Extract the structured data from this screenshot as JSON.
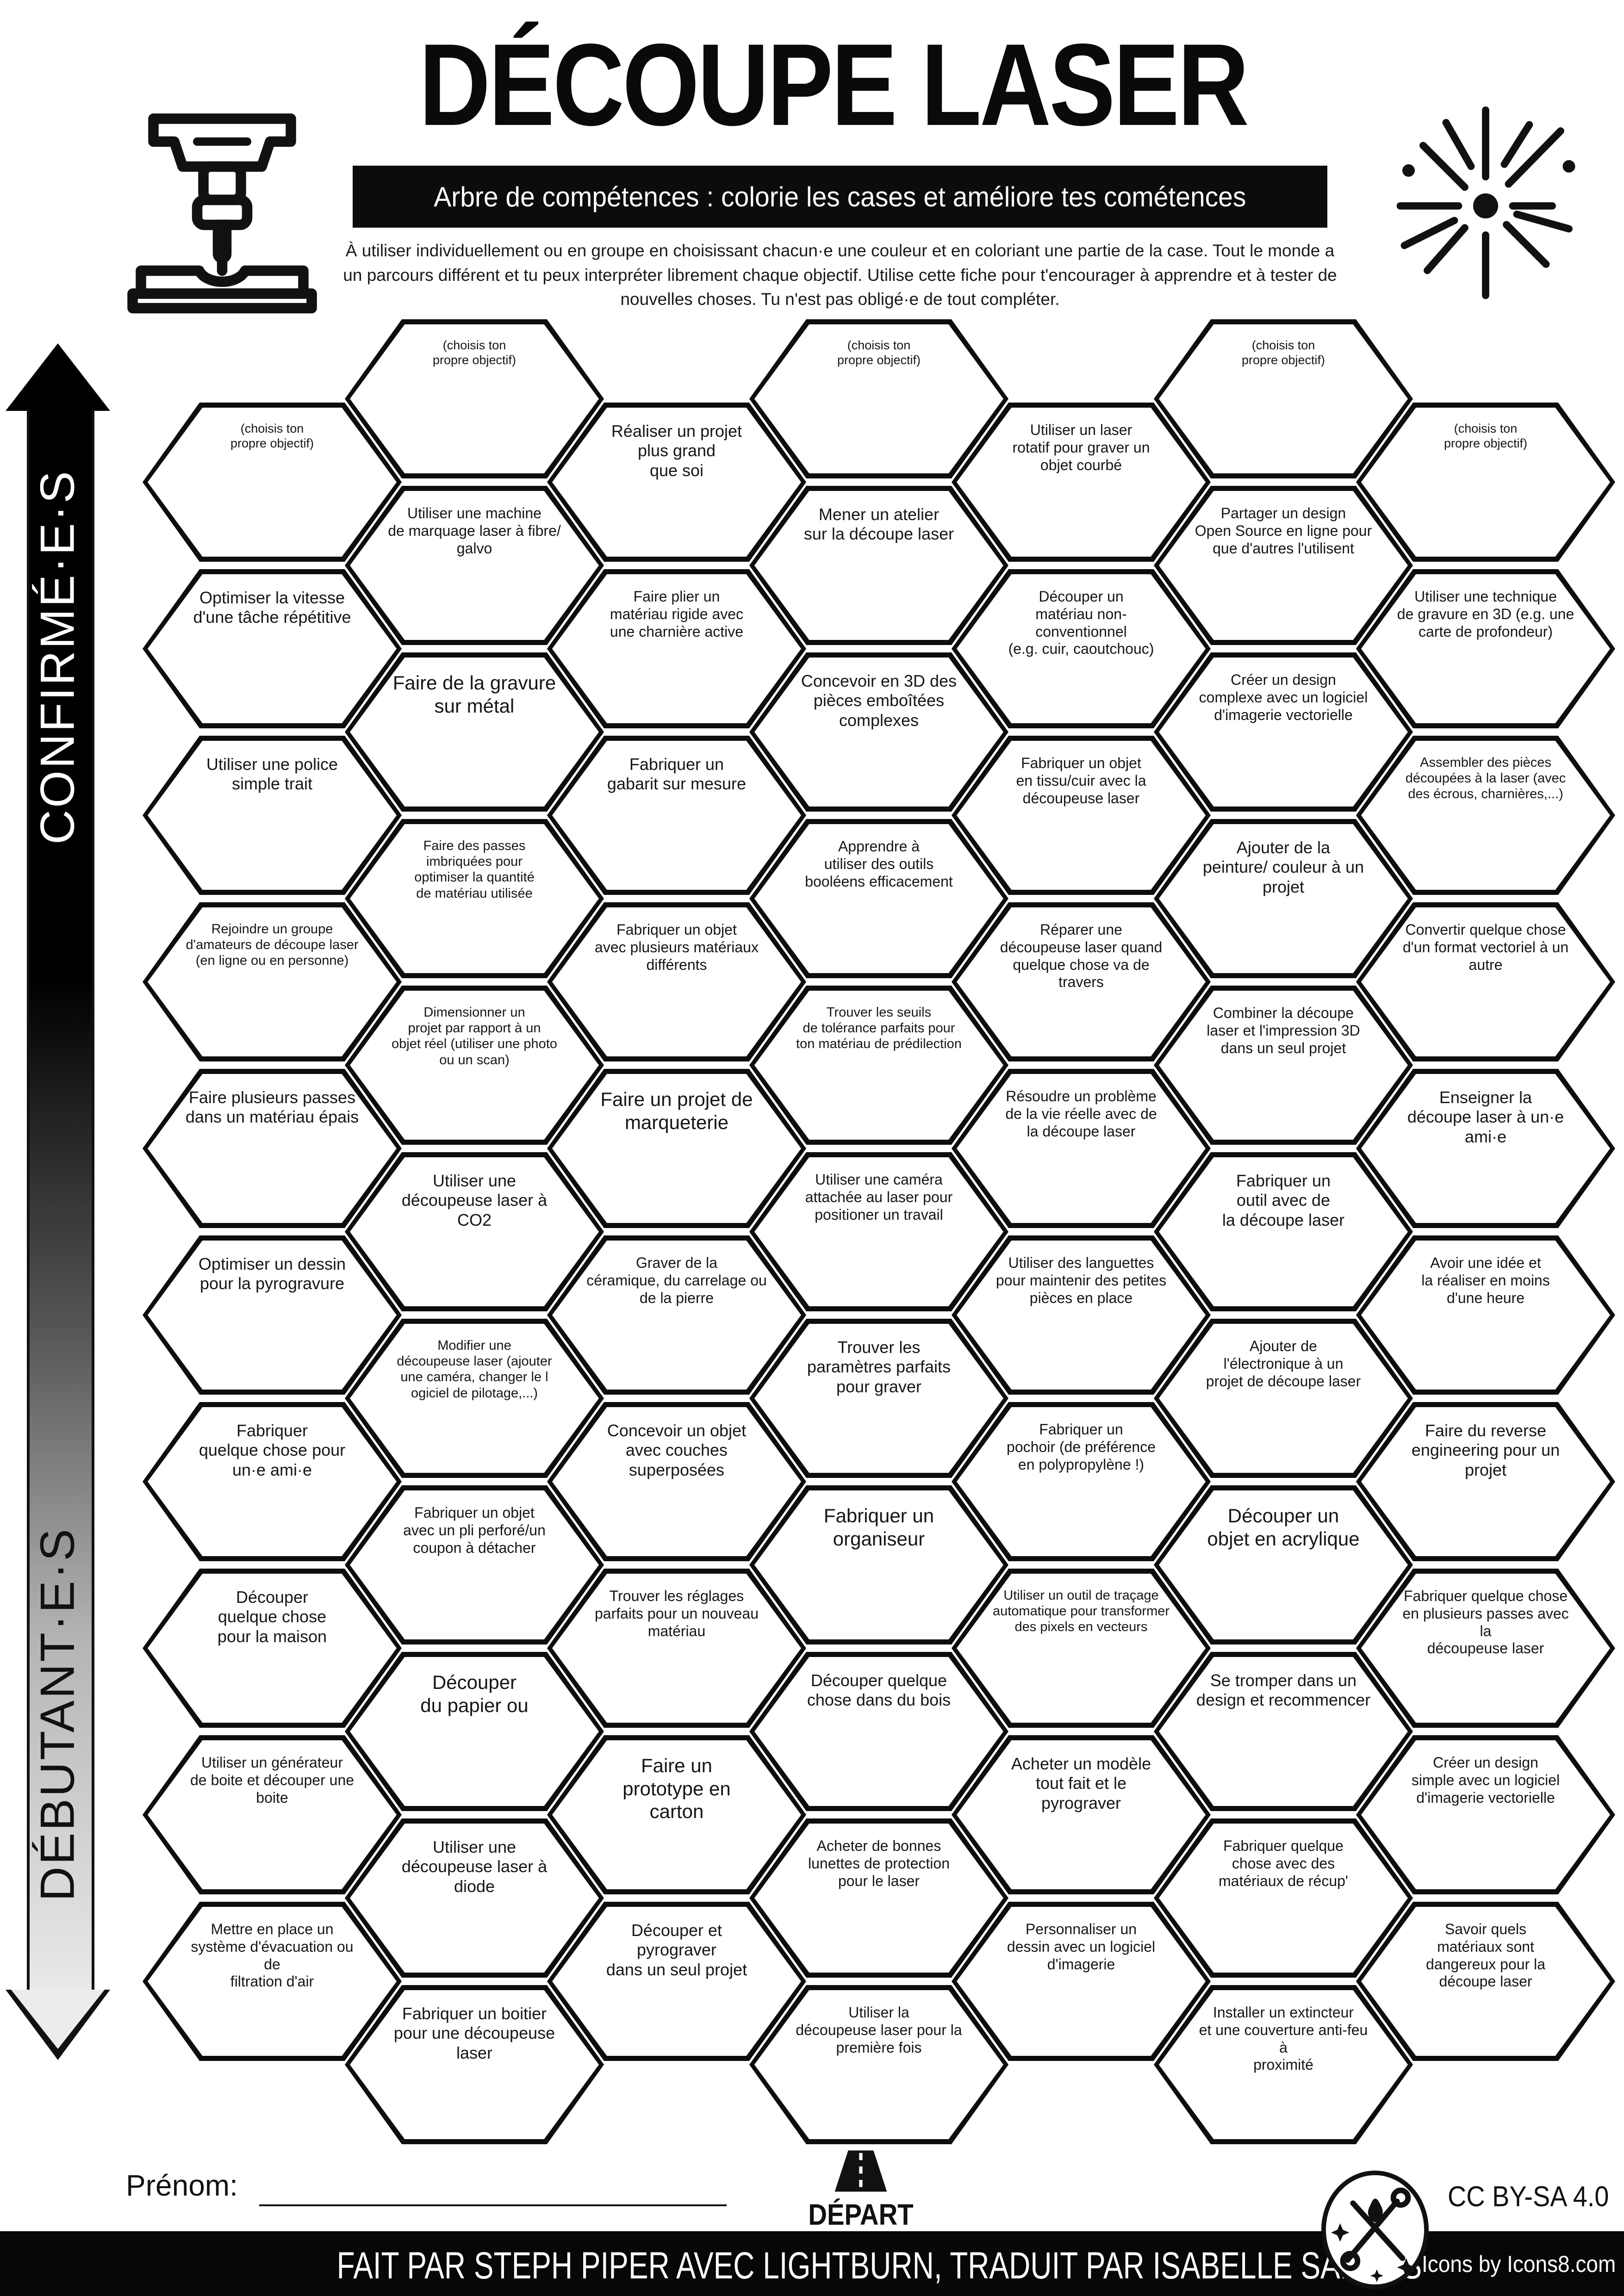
{
  "header": {
    "title": "DÉCOUPE LASER",
    "banner": "Arbre de compétences : colorie les cases et améliore tes cométences",
    "description": "À utiliser individuellement ou en groupe en choisissant chacun·e une couleur et en coloriant une partie de la case. Tout le monde a un parcours différent et tu peux interpréter librement chaque objectif. Utilise cette fiche pour t'encourager à apprendre et à tester de nouvelles choses. Tu n'est pas obligé·e de tout compléter."
  },
  "axis": {
    "top_label": "CONFIRMÉ·E·S",
    "bottom_label": "DÉBUTANT·E·S"
  },
  "colors": {
    "ink": "#111111",
    "paper": "#ffffff"
  },
  "columns": [
    {
      "cells": [
        {
          "text": "(choisis ton\npropre objectif)",
          "icon": ""
        },
        {
          "text": "Optimiser la vitesse\nd'une tâche répétitive",
          "icon": "laser-machine"
        },
        {
          "text": "Utiliser une police\nsimple trait",
          "icon": "font-aa"
        },
        {
          "text": "Rejoindre un groupe\nd'amateurs de découpe laser\n(en ligne ou en personne)",
          "icon": "map-pin"
        },
        {
          "text": "Faire plusieurs passes\ndans un matériau épais",
          "icon": "laser-machine"
        },
        {
          "text": "Optimiser un dessin\npour la pyrogravure",
          "icon": "heart-laser"
        },
        {
          "text": "Fabriquer\nquelque chose pour\nun·e ami·e",
          "icon": "gift-bow"
        },
        {
          "text": "Découper\nquelque chose\npour la maison",
          "icon": "house"
        },
        {
          "text": "Utiliser un générateur\nde boite et découper une\nboite",
          "icon": "finger-joint-box"
        },
        {
          "text": "Mettre en place un\nsystème d'évacuation ou de\nfiltration d'air",
          "icon": "wind"
        }
      ]
    },
    {
      "cells": [
        {
          "text": "(choisis ton\npropre objectif)",
          "icon": ""
        },
        {
          "text": "Utiliser une machine\nde marquage laser à fibre/\ngalvo",
          "icon": "laser-burst"
        },
        {
          "text": "Faire de la gravure\nsur métal",
          "icon": "heart-laser"
        },
        {
          "text": "Faire des passes\nimbriquées pour\noptimiser la quantité\nde matériau utilisée",
          "icon": "nested-bone"
        },
        {
          "text": "Dimensionner un\nprojet par rapport à un\nobjet réel (utiliser une photo\nou un scan)",
          "icon": "gear-hand"
        },
        {
          "text": "Utiliser une\ndécoupeuse laser à\nCO2",
          "icon": "laser-burst"
        },
        {
          "text": "Modifier une\ndécoupeuse laser (ajouter\nune caméra, changer le l\nogiciel de pilotage,...)",
          "icon": "camera"
        },
        {
          "text": "Fabriquer un objet\navec un pli perforé/un\ncoupon à détacher",
          "icon": "perforated-heart"
        },
        {
          "text": "Découper\ndu papier ou",
          "icon": "paper"
        },
        {
          "text": "Utiliser une\ndécoupeuse laser à\ndiode",
          "icon": "laser-burst"
        },
        {
          "text": "Fabriquer un boitier\npour une découpeuse\nlaser",
          "icon": "laser-enclosure"
        }
      ]
    },
    {
      "cells": [
        {
          "text": "Réaliser un projet\nplus grand\nque soi",
          "icon": "elephant"
        },
        {
          "text": "Faire plier un\nmatériau rigide avec\nune charnière active",
          "icon": "living-hinge"
        },
        {
          "text": "Fabriquer un\ngabarit sur mesure",
          "icon": "jig-frame"
        },
        {
          "text": "Fabriquer un objet\navec plusieurs matériaux\ndifférents",
          "icon": "layers"
        },
        {
          "text": "Faire un projet de\nmarqueterie",
          "icon": "marquetry"
        },
        {
          "text": "Graver de la\ncéramique, du carrelage ou\nde la pierre",
          "icon": "stone"
        },
        {
          "text": "Concevoir un objet\navec couches\nsuperposées",
          "icon": "striped-heart"
        },
        {
          "text": "Trouver les réglages\nparfaits pour un nouveau\nmatériau",
          "icon": "layers"
        },
        {
          "text": "Faire un\nprototype en\ncarton",
          "icon": "corrugated"
        },
        {
          "text": "Découper et\npyrograver\ndans un seul projet",
          "icon": "heart-laser"
        }
      ]
    },
    {
      "cells": [
        {
          "text": "(choisis ton\npropre objectif)",
          "icon": ""
        },
        {
          "text": "Mener un atelier\nsur la découpe laser",
          "icon": "teacher"
        },
        {
          "text": "Concevoir en 3D des\npièces emboîtées\ncomplexes",
          "icon": "interlock-blocks"
        },
        {
          "text": "Apprendre à\nutiliser des outils\nbooléens efficacement",
          "icon": "pen-tool"
        },
        {
          "text": "Trouver les seuils\nde tolérance parfaits pour\nton matériau de prédilection",
          "icon": "tolerance-cube"
        },
        {
          "text": "Utiliser une caméra\nattachée au laser pour\npositioner un travail",
          "icon": "camera"
        },
        {
          "text": "Trouver les\nparamètres parfaits\npour graver",
          "icon": "portrait-frame"
        },
        {
          "text": "Fabriquer un\norganiseur",
          "icon": "organizer"
        },
        {
          "text": "Découper quelque\nchose dans du bois",
          "icon": "wood-planks"
        },
        {
          "text": "Acheter de bonnes\nlunettes de protection\npour le laser",
          "icon": "safety-glasses"
        },
        {
          "text": "Utiliser la\ndécoupeuse laser pour la\npremière fois",
          "icon": "party-popper"
        }
      ]
    },
    {
      "cells": [
        {
          "text": "Utiliser un laser\nrotatif pour graver un\nobjet courbé",
          "icon": "laser-burst"
        },
        {
          "text": "Découper un\nmatériau non-conventionnel\n(e.g. cuir, caoutchouc)",
          "icon": "leaf"
        },
        {
          "text": "Fabriquer un objet\nen tissu/cuir avec la\ndécoupeuse laser",
          "icon": "fabric"
        },
        {
          "text": "Réparer une\ndécoupeuse laser quand\nquelque chose va de travers",
          "icon": "tools-filled"
        },
        {
          "text": "Résoudre un problème\nde la vie réelle avec de\nla découpe laser",
          "icon": "gear-hand"
        },
        {
          "text": "Utiliser des languettes\npour maintenir des petites\npièces en place",
          "icon": "tabs-a"
        },
        {
          "text": "Fabriquer un\npochoir (de préférence\nen polypropylène !)",
          "icon": "stencil"
        },
        {
          "text": "Utiliser un outil de traçage\nautomatique pour transformer\ndes pixels en vecteurs",
          "icon": "pen-tool"
        },
        {
          "text": "Acheter un modèle\ntout fait et le\npyrograver",
          "icon": "pyro-model"
        },
        {
          "text": "Personnaliser un\ndessin avec un logiciel\nd'imagerie",
          "icon": "pen-tool"
        }
      ]
    },
    {
      "cells": [
        {
          "text": "(choisis ton\npropre objectif)",
          "icon": ""
        },
        {
          "text": "Partager un design\nOpen Source en ligne pour\nque d'autres l'utilisent",
          "icon": "upload"
        },
        {
          "text": "Créer un design\ncomplexe avec un logiciel\nd'imagerie vectorielle",
          "icon": "pen-tool"
        },
        {
          "text": "Ajouter de la\npeinture/ couleur à un\nprojet",
          "icon": "paint-can"
        },
        {
          "text": "Combiner la découpe\nlaser et l'impression 3D\ndans un seul projet",
          "icon": "print-laser-combo"
        },
        {
          "text": "Fabriquer un\noutil avec de\nla découpe laser",
          "icon": "tools-outline"
        },
        {
          "text": "Ajouter de\nl'électronique à un\nprojet de découpe laser",
          "icon": "led"
        },
        {
          "text": "Découper un\nobjet en acrylique",
          "icon": "layers"
        },
        {
          "text": "Se tromper dans un\ndesign et recommencer",
          "icon": "facepalm"
        },
        {
          "text": "Fabriquer quelque\nchose avec des\nmatériaux de récup'",
          "icon": "recycle"
        },
        {
          "text": "Installer un extincteur\net une couverture anti-feu à\nproximité",
          "icon": "extinguisher"
        }
      ]
    },
    {
      "cells": [
        {
          "text": "(choisis ton\npropre objectif)",
          "icon": ""
        },
        {
          "text": "Utiliser une technique\nde gravure en 3D (e.g. une\ncarte de profondeur)",
          "icon": "layers"
        },
        {
          "text": "Assembler des pièces\ndécoupées à la laser (avec\ndes écrous, charnières,...)",
          "icon": "bolt-nuts"
        },
        {
          "text": "Convertir quelque chose\nd'un format vectoriel à un\nautre",
          "icon": "pen-tool"
        },
        {
          "text": "Enseigner la\ndécoupe laser à un·e\nami·e",
          "icon": "teacher"
        },
        {
          "text": "Avoir une idée et\nla réaliser en moins\nd'une heure",
          "icon": "clock"
        },
        {
          "text": "Faire du reverse\nengineering pour un\nprojet",
          "icon": "gear-hand"
        },
        {
          "text": "Fabriquer quelque chose\nen plusieurs passes avec la\ndécoupeuse laser",
          "icon": "interlock-blocks"
        },
        {
          "text": "Créer un design\nsimple avec un logiciel\nd'imagerie vectorielle",
          "icon": "pen-tool"
        },
        {
          "text": "Savoir quels\nmatériaux sont\ndangereux pour la\ndécoupe laser",
          "icon": "no-materials"
        }
      ]
    }
  ],
  "start": {
    "label": "DÉPART",
    "icon": "road"
  },
  "prenom_label": "Prénom:",
  "footer": {
    "credit": "FAIT PAR STEPH PIPER AVEC LIGHTBURN, TRADUIT PAR ISABELLE SANTOS",
    "license": "CC BY-SA 4.0",
    "icons_credit": "Icons by Icons8.com"
  }
}
